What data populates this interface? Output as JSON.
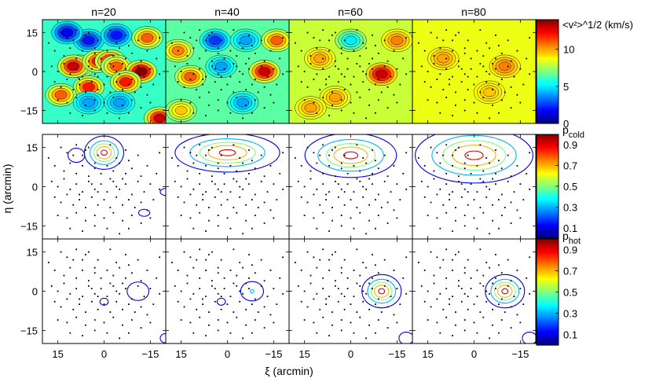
{
  "chart_data": {
    "type": "heatmap",
    "panel_titles": [
      "n=20",
      "n=40",
      "n=60",
      "n=80"
    ],
    "xlabel": "ξ (arcmin)",
    "ylabel": "η (arcmin)",
    "xlim": [
      20,
      -20
    ],
    "ylim": [
      -20,
      20
    ],
    "x_ticks": [
      "15",
      "0",
      "−15"
    ],
    "y_ticks": [
      "15",
      "0",
      "−15"
    ],
    "rows": [
      {
        "quantity": "velocity dispersion",
        "colorbar_label": "<v²>^1/2 (km/s)",
        "colorbar_range": [
          0,
          14
        ],
        "colorbar_ticks": [
          "10",
          "5",
          "0"
        ],
        "colorbar_tick_values": [
          10,
          5,
          0
        ],
        "background_level_by_panel": [
          6,
          6.5,
          8,
          8.5
        ],
        "features": [
          [
            {
              "x": 5,
              "y": 12,
              "value": 2
            },
            {
              "x": -4,
              "y": 14,
              "value": 2
            },
            {
              "x": 12,
              "y": 15,
              "value": 1.5
            },
            {
              "x": 8,
              "y": 2,
              "value": 10
            },
            {
              "x": 10,
              "y": 2,
              "value": 13
            },
            {
              "x": 2,
              "y": 4,
              "value": 12
            },
            {
              "x": -2,
              "y": 4,
              "value": 13
            },
            {
              "x": -4,
              "y": 2,
              "value": 11
            },
            {
              "x": -12,
              "y": 0,
              "value": 14
            },
            {
              "x": -7,
              "y": -4,
              "value": 12
            },
            {
              "x": 5,
              "y": -6,
              "value": 12
            },
            {
              "x": 14,
              "y": -9,
              "value": 11
            },
            {
              "x": -14,
              "y": 13,
              "value": 11
            },
            {
              "x": -5,
              "y": -12,
              "value": 4
            },
            {
              "x": 5,
              "y": -12,
              "value": 4
            },
            {
              "x": -18,
              "y": -18,
              "value": 13
            }
          ],
          [
            {
              "x": 4,
              "y": 12,
              "value": 2.5
            },
            {
              "x": -6,
              "y": 12,
              "value": 4
            },
            {
              "x": 2,
              "y": 2,
              "value": 4
            },
            {
              "x": -12,
              "y": 0,
              "value": 13
            },
            {
              "x": 12,
              "y": -2,
              "value": 11
            },
            {
              "x": -16,
              "y": 12,
              "value": 11
            },
            {
              "x": 16,
              "y": 8,
              "value": 10.5
            },
            {
              "x": -5,
              "y": -12,
              "value": 4
            },
            {
              "x": 15,
              "y": -15,
              "value": 9.5
            }
          ],
          [
            {
              "x": -10,
              "y": -1,
              "value": 13
            },
            {
              "x": 10,
              "y": 5,
              "value": 10
            },
            {
              "x": -15,
              "y": 12,
              "value": 10.5
            },
            {
              "x": 5,
              "y": -10,
              "value": 10
            },
            {
              "x": 0,
              "y": 12,
              "value": 5
            },
            {
              "x": 13,
              "y": -14,
              "value": 10
            }
          ],
          [
            {
              "x": -10,
              "y": 2,
              "value": 10.5
            },
            {
              "x": 10,
              "y": 5,
              "value": 10
            },
            {
              "x": -5,
              "y": -8,
              "value": 9.5
            }
          ]
        ]
      },
      {
        "quantity": "p_cold",
        "colorbar_label": "p",
        "colorbar_label_subscript": "cold",
        "colorbar_range": [
          0,
          1
        ],
        "colorbar_ticks": [
          "0.9",
          "0.7",
          "0.5",
          "0.3",
          "0.1"
        ],
        "colorbar_tick_values": [
          0.9,
          0.7,
          0.5,
          0.3,
          0.1
        ],
        "contour_levels": [
          0.1,
          0.3,
          0.5,
          0.7,
          0.9
        ],
        "blobs": [
          [
            {
              "x": 0,
              "y": 13,
              "rx": 3,
              "ry": 3,
              "peak": 0.95
            },
            {
              "x": 9,
              "y": 12,
              "rx": 2,
              "ry": 2,
              "peak": 0.25
            },
            {
              "x": -13,
              "y": -10,
              "rx": 2,
              "ry": 1.5,
              "peak": 0.15
            },
            {
              "x": -20,
              "y": -2,
              "rx": 2,
              "ry": 1.5,
              "peak": 0.15
            }
          ],
          [
            {
              "x": 0,
              "y": 13,
              "rx": 8,
              "ry": 3.5,
              "peak": 0.95
            }
          ],
          [
            {
              "x": 0,
              "y": 12,
              "rx": 7,
              "ry": 4,
              "peak": 0.95
            }
          ],
          [
            {
              "x": 0,
              "y": 12,
              "rx": 9,
              "ry": 5,
              "peak": 0.95
            }
          ]
        ]
      },
      {
        "quantity": "p_hot",
        "colorbar_label": "p",
        "colorbar_label_subscript": "hot",
        "colorbar_range": [
          0,
          1
        ],
        "colorbar_ticks": [
          "0.9",
          "0.7",
          "0.5",
          "0.3",
          "0.1"
        ],
        "colorbar_tick_values": [
          0.9,
          0.7,
          0.5,
          0.3,
          0.1
        ],
        "contour_levels": [
          0.1,
          0.3,
          0.5,
          0.7,
          0.9
        ],
        "blobs": [
          [
            {
              "x": -11,
              "y": 0,
              "rx": 3,
              "ry": 3,
              "peak": 0.2
            },
            {
              "x": 0,
              "y": -4,
              "rx": 1.5,
              "ry": 1.5,
              "peak": 0.15
            },
            {
              "x": -20,
              "y": -18,
              "rx": 2,
              "ry": 2,
              "peak": 0.15
            }
          ],
          [
            {
              "x": -8,
              "y": 0,
              "rx": 2.5,
              "ry": 2.5,
              "peak": 0.3
            },
            {
              "x": 2,
              "y": -4,
              "rx": 1.5,
              "ry": 1.5,
              "peak": 0.15
            }
          ],
          [
            {
              "x": -10,
              "y": 0,
              "rx": 3,
              "ry": 3,
              "peak": 0.95
            },
            {
              "x": -18,
              "y": -18,
              "rx": 2,
              "ry": 2,
              "peak": 0.2
            }
          ],
          [
            {
              "x": -10,
              "y": 0,
              "rx": 3,
              "ry": 3,
              "peak": 0.95
            },
            {
              "x": -18,
              "y": -18,
              "rx": 2,
              "ry": 2,
              "peak": 0.2
            }
          ]
        ]
      }
    ],
    "stars": [
      [
        14,
        15
      ],
      [
        12,
        13
      ],
      [
        9,
        16
      ],
      [
        7,
        12
      ],
      [
        5,
        15
      ],
      [
        3,
        9
      ],
      [
        -2,
        16
      ],
      [
        -4,
        11
      ],
      [
        -7,
        14
      ],
      [
        -11,
        12
      ],
      [
        16,
        8
      ],
      [
        13,
        6
      ],
      [
        11,
        9
      ],
      [
        9,
        5
      ],
      [
        7,
        8
      ],
      [
        5,
        4
      ],
      [
        3,
        7
      ],
      [
        1,
        5
      ],
      [
        -1,
        8
      ],
      [
        -3,
        6
      ],
      [
        -5,
        9
      ],
      [
        -7,
        5
      ],
      [
        -9,
        7
      ],
      [
        -12,
        4
      ],
      [
        -14,
        8
      ],
      [
        -17,
        5
      ],
      [
        17,
        2
      ],
      [
        15,
        0
      ],
      [
        13,
        3
      ],
      [
        11,
        -1
      ],
      [
        9,
        1
      ],
      [
        7,
        -2
      ],
      [
        5,
        2
      ],
      [
        3,
        -1
      ],
      [
        1,
        1
      ],
      [
        -1,
        -2
      ],
      [
        -3,
        2
      ],
      [
        -5,
        -1
      ],
      [
        -7,
        1
      ],
      [
        -9,
        -3
      ],
      [
        -11,
        2
      ],
      [
        -13,
        -2
      ],
      [
        -15,
        1
      ],
      [
        -18,
        -1
      ],
      [
        16,
        -4
      ],
      [
        14,
        -6
      ],
      [
        12,
        -3
      ],
      [
        10,
        -7
      ],
      [
        8,
        -5
      ],
      [
        6,
        -8
      ],
      [
        4,
        -4
      ],
      [
        2,
        -7
      ],
      [
        0,
        -5
      ],
      [
        -2,
        -8
      ],
      [
        -4,
        -4
      ],
      [
        -6,
        -7
      ],
      [
        -8,
        -5
      ],
      [
        -10,
        -8
      ],
      [
        -12,
        -6
      ],
      [
        -14,
        -9
      ],
      [
        -16,
        -5
      ],
      [
        15,
        -11
      ],
      [
        12,
        -12
      ],
      [
        9,
        -10
      ],
      [
        6,
        -13
      ],
      [
        3,
        -11
      ],
      [
        0,
        -12
      ],
      [
        -3,
        -10
      ],
      [
        -6,
        -13
      ],
      [
        -9,
        -11
      ],
      [
        -12,
        -14
      ],
      [
        -15,
        -12
      ],
      [
        11,
        -16
      ],
      [
        7,
        -17
      ],
      [
        3,
        -15
      ],
      [
        -1,
        -16
      ],
      [
        -5,
        -18
      ],
      [
        -8,
        -16
      ],
      [
        10,
        12
      ],
      [
        6,
        14
      ],
      [
        2,
        12
      ],
      [
        -8,
        10
      ],
      [
        18,
        11
      ],
      [
        -18,
        13
      ],
      [
        4,
        1
      ],
      [
        -2,
        3
      ],
      [
        8,
        -3
      ],
      [
        -6,
        3
      ],
      [
        2,
        -2
      ],
      [
        -4,
        0
      ]
    ]
  }
}
